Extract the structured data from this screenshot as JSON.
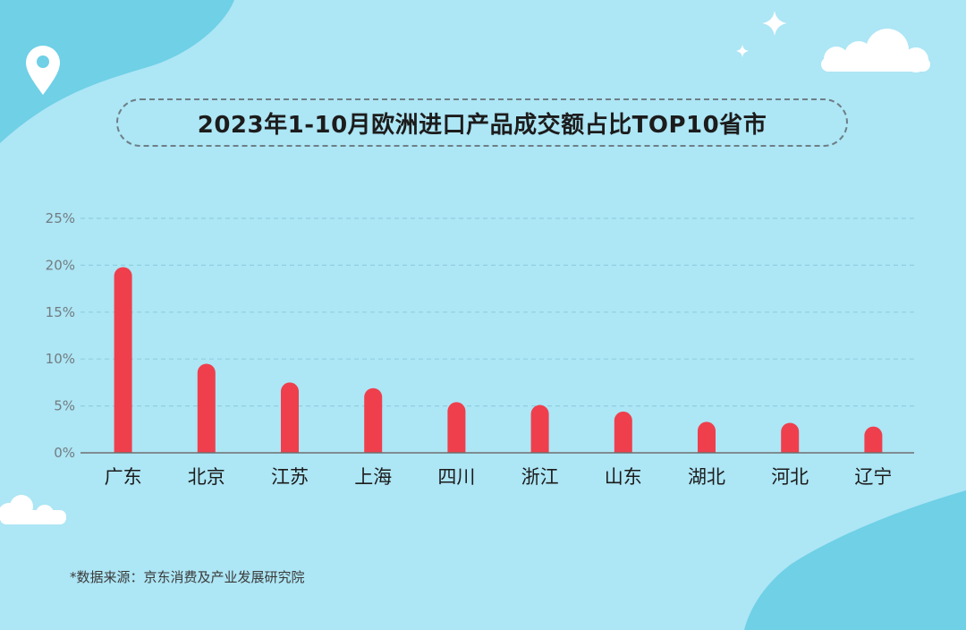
{
  "title": "2023年1-10月欧洲进口产品成交额占比TOP10省市",
  "source_note": "*数据来源：京东消费及产业发展研究院",
  "colors": {
    "background": "#ade6f5",
    "blob": "#6fd0e6",
    "bar": "#ef3f4d",
    "grid": "#8fcfe0",
    "axis": "#6f6f6f",
    "cloud": "#ffffff"
  },
  "icons": [
    "location-pin-icon",
    "sparkle-icon",
    "cloud-icon"
  ],
  "chart_data": {
    "type": "bar",
    "categories": [
      "广东",
      "北京",
      "江苏",
      "上海",
      "四川",
      "浙江",
      "山东",
      "湖北",
      "河北",
      "辽宁"
    ],
    "values": [
      19.8,
      9.5,
      7.5,
      6.9,
      5.4,
      5.1,
      4.4,
      3.3,
      3.2,
      2.8
    ],
    "ylim": [
      0,
      25
    ],
    "yticks": [
      0,
      5,
      10,
      15,
      20,
      25
    ],
    "ytick_labels": [
      "0%",
      "5%",
      "10%",
      "15%",
      "20%",
      "25%"
    ],
    "grid": true,
    "xlabel": "",
    "ylabel": ""
  }
}
